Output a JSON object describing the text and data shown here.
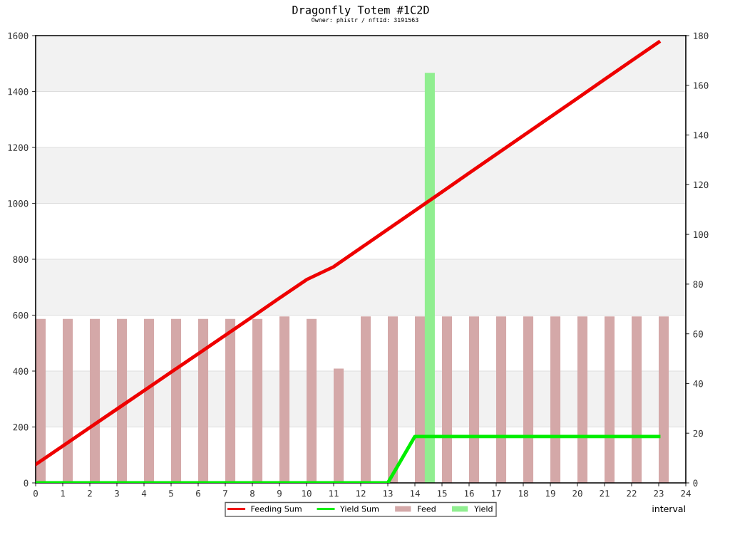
{
  "chart_data": {
    "type": "line",
    "title": "Dragonfly Totem #1C2D",
    "subtitle": "Owner: phistr / nftId: 3191563",
    "xlabel": "interval",
    "x": [
      0,
      1,
      2,
      3,
      4,
      5,
      6,
      7,
      8,
      9,
      10,
      11,
      12,
      13,
      14,
      15,
      16,
      17,
      18,
      19,
      20,
      21,
      22,
      23
    ],
    "series": [
      {
        "name": "Feeding Sum",
        "color": "#ee0000",
        "axis": "y",
        "values": [
          66,
          132,
          198,
          264,
          330,
          396,
          462,
          528,
          594,
          661,
          727,
          773,
          840,
          907,
          974,
          1041,
          1108,
          1175,
          1242,
          1309,
          1376,
          1443,
          1510,
          1577
        ]
      },
      {
        "name": "Yield Sum",
        "color": "#00ee00",
        "axis": "y",
        "values": [
          0,
          0,
          0,
          0,
          0,
          0,
          0,
          0,
          0,
          0,
          0,
          0,
          0,
          0,
          166,
          166,
          166,
          166,
          166,
          166,
          166,
          166,
          166,
          166
        ]
      },
      {
        "name": "Feed",
        "type": "bar",
        "color": "#d4a8a8",
        "axis": "y2",
        "values": [
          66,
          66,
          66,
          66,
          66,
          66,
          66,
          66,
          66,
          67,
          66,
          46,
          67,
          67,
          67,
          67,
          67,
          67,
          67,
          67,
          67,
          67,
          67,
          67
        ]
      },
      {
        "name": "Yield",
        "type": "bar",
        "color": "#90ee90",
        "axis": "y2",
        "x": [
          14.55
        ],
        "values": [
          165
        ]
      }
    ],
    "xlim": [
      0,
      24
    ],
    "xticks": [
      0,
      1,
      2,
      3,
      4,
      5,
      6,
      7,
      8,
      9,
      10,
      11,
      12,
      13,
      14,
      15,
      16,
      17,
      18,
      19,
      20,
      21,
      22,
      23,
      24
    ],
    "ylim": [
      0,
      1600
    ],
    "yticks": [
      0,
      200,
      400,
      600,
      800,
      1000,
      1200,
      1400,
      1600
    ],
    "y2lim": [
      0,
      180
    ],
    "y2ticks": [
      0,
      20,
      40,
      60,
      80,
      100,
      120,
      140,
      160,
      180
    ],
    "bands": [
      {
        "axis": "y",
        "from": 200,
        "to": 400,
        "color": "#f2f2f2"
      },
      {
        "axis": "y",
        "from": 600,
        "to": 800,
        "color": "#f2f2f2"
      },
      {
        "axis": "y",
        "from": 1000,
        "to": 1200,
        "color": "#f2f2f2"
      },
      {
        "axis": "y",
        "from": 1400,
        "to": 1600,
        "color": "#f2f2f2"
      }
    ],
    "grid": "y",
    "legend": "bottom",
    "marker": "none",
    "line_style": "solid"
  }
}
